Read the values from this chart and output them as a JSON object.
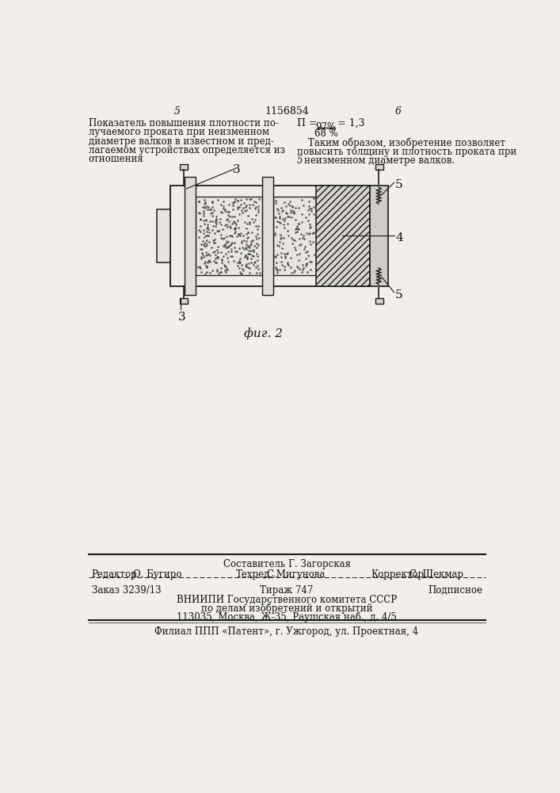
{
  "page_number_left": "5",
  "page_number_center": "1156854",
  "page_number_right": "6",
  "left_col_text": [
    "Показатель повышения плотности по-",
    "лучаемого проката при неизменном",
    "диаметре валков в известном и пред-",
    "лагаемом устройствах определяется из",
    "отношения"
  ],
  "formula_line1": "97%",
  "formula_line2": "68 %",
  "formula_prefix": "П =",
  "formula_result": "= 1,3",
  "right_col_text_1": "Таким образом, изобретение позволяет",
  "right_col_text_2": "повысить толщину и плотность проката при",
  "right_col_text_3": "неизменном диаметре валков.",
  "right_col_number": "5",
  "fig_caption": "фиг. 2",
  "label_3": "3",
  "label_4": "4",
  "label_5": "5",
  "footer_sestavitel": "Составитель Г. Загорская",
  "footer_redaktor_label": "Редактор",
  "footer_redaktor": "О. Бугиро",
  "footer_tehred_label": "Техред",
  "footer_tehred": "С.Мигунова",
  "footer_korrektor_label": "Корректор",
  "footer_korrektor": "С. Шекмар",
  "footer_zakaz": "Заказ 3239/13",
  "footer_tirazh": "Тираж 747",
  "footer_podpisnoe": "Подписное",
  "footer_vniipи": "ВНИИПИ Государственного комитета СССР",
  "footer_po_delam": "по делам изобретений и открытий",
  "footer_address": "113035, Москва, Ж-35, Раушская наб., д. 4/5",
  "footer_filial": "Филиал ППП «Патент», г. Ужгород, ул. Проектная, 4",
  "bg_color": "#f2efea",
  "line_color": "#1a1a1a",
  "text_color": "#111111"
}
